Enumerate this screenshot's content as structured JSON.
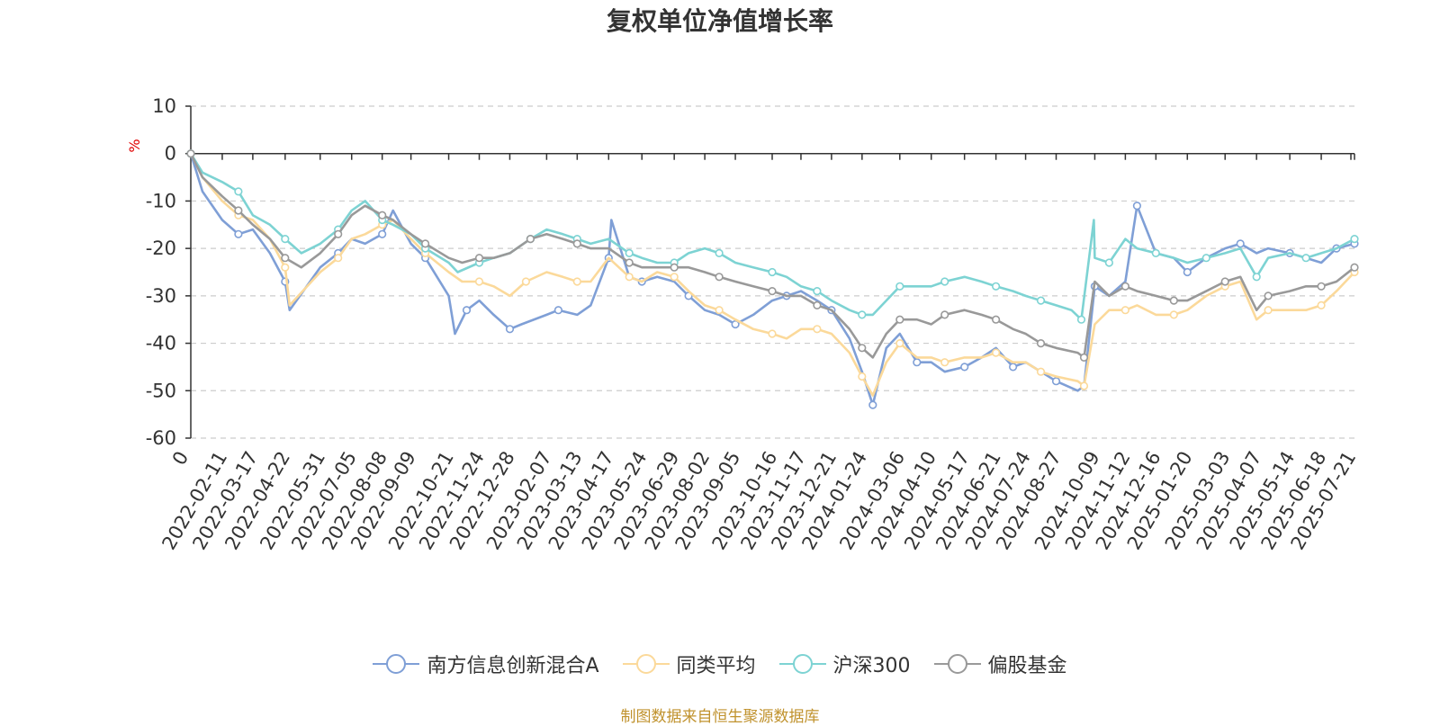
{
  "chart_data": {
    "type": "line",
    "title": "复权单位净值增长率",
    "ylabel": "%",
    "ylim": [
      -60,
      10
    ],
    "yticks": [
      10,
      0,
      -10,
      -20,
      -30,
      -40,
      -50,
      -60
    ],
    "x_start": "2022-01-07",
    "x_end": "2025-07-25",
    "origin_label": "0",
    "x_tick_labels": [
      "2022-02-11",
      "2022-03-17",
      "2022-04-22",
      "2022-05-31",
      "2022-07-05",
      "2022-08-08",
      "2022-09-09",
      "2022-10-21",
      "2022-11-24",
      "2022-12-28",
      "2023-02-07",
      "2023-03-13",
      "2023-04-17",
      "2023-05-24",
      "2023-06-29",
      "2023-08-02",
      "2023-09-05",
      "2023-10-16",
      "2023-11-17",
      "2023-12-21",
      "2024-01-24",
      "2024-03-06",
      "2024-04-10",
      "2024-05-17",
      "2024-06-21",
      "2024-07-24",
      "2024-08-27",
      "2024-10-09",
      "2024-11-12",
      "2024-12-16",
      "2025-01-20",
      "2025-03-03",
      "2025-04-07",
      "2025-05-14",
      "2025-06-18",
      "2025-07-21"
    ],
    "grid": true,
    "legend_position": "bottom",
    "series": [
      {
        "name": "南方信息创新混合A",
        "color": "#7f9fd6",
        "x": [
          "2022-01-07",
          "2022-01-20",
          "2022-02-11",
          "2022-03-01",
          "2022-03-17",
          "2022-04-05",
          "2022-04-22",
          "2022-04-27",
          "2022-05-31",
          "2022-06-20",
          "2022-07-05",
          "2022-07-20",
          "2022-08-08",
          "2022-08-20",
          "2022-09-09",
          "2022-09-25",
          "2022-10-21",
          "2022-10-28",
          "2022-11-10",
          "2022-11-24",
          "2022-12-10",
          "2022-12-28",
          "2023-01-10",
          "2023-02-07",
          "2023-02-20",
          "2023-03-13",
          "2023-03-28",
          "2023-04-17",
          "2023-04-20",
          "2023-05-10",
          "2023-05-24",
          "2023-06-10",
          "2023-06-29",
          "2023-07-15",
          "2023-08-02",
          "2023-08-18",
          "2023-09-05",
          "2023-09-25",
          "2023-10-16",
          "2023-11-01",
          "2023-11-17",
          "2023-12-05",
          "2023-12-21",
          "2024-01-10",
          "2024-01-24",
          "2024-02-05",
          "2024-02-20",
          "2024-03-06",
          "2024-03-25",
          "2024-04-10",
          "2024-04-25",
          "2024-05-17",
          "2024-06-05",
          "2024-06-21",
          "2024-07-10",
          "2024-07-24",
          "2024-08-10",
          "2024-08-27",
          "2024-09-20",
          "2024-09-27",
          "2024-10-09",
          "2024-10-25",
          "2024-11-12",
          "2024-11-25",
          "2024-12-16",
          "2025-01-05",
          "2025-01-20",
          "2025-02-10",
          "2025-03-03",
          "2025-03-20",
          "2025-04-07",
          "2025-04-20",
          "2025-05-14",
          "2025-06-01",
          "2025-06-18",
          "2025-07-05",
          "2025-07-25"
        ],
        "values": [
          0,
          -8,
          -14,
          -17,
          -16,
          -21,
          -27,
          -33,
          -24,
          -21,
          -18,
          -19,
          -17,
          -12,
          -19,
          -22,
          -30,
          -38,
          -33,
          -31,
          -34,
          -37,
          -36,
          -34,
          -33,
          -34,
          -32,
          -22,
          -14,
          -26,
          -27,
          -26,
          -27,
          -30,
          -33,
          -34,
          -36,
          -34,
          -31,
          -30,
          -29,
          -31,
          -33,
          -39,
          -46,
          -53,
          -41,
          -38,
          -44,
          -44,
          -46,
          -45,
          -43,
          -41,
          -45,
          -44,
          -46,
          -48,
          -50,
          -49,
          -28,
          -30,
          -27,
          -11,
          -21,
          -22,
          -25,
          -22,
          -20,
          -19,
          -21,
          -20,
          -21,
          -22,
          -23,
          -20,
          -19
        ]
      },
      {
        "name": "同类平均",
        "color": "#fbd99a",
        "x": [
          "2022-01-07",
          "2022-01-20",
          "2022-02-11",
          "2022-03-01",
          "2022-03-17",
          "2022-04-05",
          "2022-04-22",
          "2022-04-27",
          "2022-05-31",
          "2022-06-20",
          "2022-07-05",
          "2022-07-20",
          "2022-08-08",
          "2022-08-20",
          "2022-09-09",
          "2022-09-25",
          "2022-10-21",
          "2022-11-05",
          "2022-11-24",
          "2022-12-10",
          "2022-12-28",
          "2023-01-15",
          "2023-02-07",
          "2023-02-25",
          "2023-03-13",
          "2023-03-28",
          "2023-04-17",
          "2023-05-10",
          "2023-05-24",
          "2023-06-10",
          "2023-06-29",
          "2023-07-15",
          "2023-08-02",
          "2023-08-18",
          "2023-09-05",
          "2023-09-25",
          "2023-10-16",
          "2023-11-01",
          "2023-11-17",
          "2023-12-05",
          "2023-12-21",
          "2024-01-10",
          "2024-01-24",
          "2024-02-05",
          "2024-02-20",
          "2024-03-06",
          "2024-03-25",
          "2024-04-10",
          "2024-04-25",
          "2024-05-17",
          "2024-06-05",
          "2024-06-21",
          "2024-07-10",
          "2024-07-24",
          "2024-08-10",
          "2024-08-27",
          "2024-09-20",
          "2024-09-27",
          "2024-10-09",
          "2024-10-25",
          "2024-11-12",
          "2024-11-25",
          "2024-12-16",
          "2025-01-05",
          "2025-01-20",
          "2025-02-10",
          "2025-03-03",
          "2025-03-20",
          "2025-04-07",
          "2025-04-20",
          "2025-05-14",
          "2025-06-01",
          "2025-06-18",
          "2025-07-05",
          "2025-07-25"
        ],
        "values": [
          0,
          -5,
          -10,
          -13,
          -14,
          -18,
          -24,
          -32,
          -25,
          -22,
          -18,
          -17,
          -15,
          -14,
          -18,
          -21,
          -25,
          -27,
          -27,
          -28,
          -30,
          -27,
          -25,
          -26,
          -27,
          -27,
          -22,
          -26,
          -27,
          -25,
          -26,
          -29,
          -32,
          -33,
          -35,
          -37,
          -38,
          -39,
          -37,
          -37,
          -38,
          -42,
          -47,
          -51,
          -44,
          -40,
          -43,
          -43,
          -44,
          -43,
          -43,
          -42,
          -44,
          -44,
          -46,
          -47,
          -48,
          -49,
          -36,
          -33,
          -33,
          -32,
          -34,
          -34,
          -33,
          -30,
          -28,
          -27,
          -35,
          -33,
          -33,
          -33,
          -32,
          -29,
          -25
        ]
      },
      {
        "name": "沪深300",
        "color": "#7dd3d3",
        "x": [
          "2022-01-07",
          "2022-01-20",
          "2022-02-11",
          "2022-03-01",
          "2022-03-17",
          "2022-04-05",
          "2022-04-22",
          "2022-05-10",
          "2022-05-31",
          "2022-06-20",
          "2022-07-05",
          "2022-07-20",
          "2022-08-08",
          "2022-08-20",
          "2022-09-09",
          "2022-09-25",
          "2022-10-21",
          "2022-10-31",
          "2022-11-24",
          "2022-12-10",
          "2022-12-28",
          "2023-01-20",
          "2023-02-07",
          "2023-02-25",
          "2023-03-13",
          "2023-03-28",
          "2023-04-17",
          "2023-05-10",
          "2023-05-24",
          "2023-06-10",
          "2023-06-29",
          "2023-07-15",
          "2023-08-02",
          "2023-08-18",
          "2023-09-05",
          "2023-09-25",
          "2023-10-16",
          "2023-11-01",
          "2023-11-17",
          "2023-12-05",
          "2023-12-21",
          "2024-01-10",
          "2024-01-24",
          "2024-02-05",
          "2024-02-20",
          "2024-03-06",
          "2024-03-25",
          "2024-04-10",
          "2024-04-25",
          "2024-05-17",
          "2024-06-05",
          "2024-06-21",
          "2024-07-10",
          "2024-07-24",
          "2024-08-10",
          "2024-08-27",
          "2024-09-13",
          "2024-09-24",
          "2024-10-08",
          "2024-10-09",
          "2024-10-25",
          "2024-11-12",
          "2024-11-25",
          "2024-12-16",
          "2025-01-05",
          "2025-01-20",
          "2025-02-10",
          "2025-03-03",
          "2025-03-20",
          "2025-04-07",
          "2025-04-20",
          "2025-05-14",
          "2025-06-01",
          "2025-06-18",
          "2025-07-05",
          "2025-07-25"
        ],
        "values": [
          0,
          -4,
          -6,
          -8,
          -13,
          -15,
          -18,
          -21,
          -19,
          -16,
          -12,
          -10,
          -14,
          -15,
          -17,
          -20,
          -23,
          -25,
          -23,
          -22,
          -21,
          -18,
          -16,
          -17,
          -18,
          -19,
          -18,
          -21,
          -22,
          -23,
          -23,
          -21,
          -20,
          -21,
          -23,
          -24,
          -25,
          -26,
          -28,
          -29,
          -31,
          -33,
          -34,
          -34,
          -31,
          -28,
          -28,
          -28,
          -27,
          -26,
          -27,
          -28,
          -29,
          -30,
          -31,
          -32,
          -33,
          -35,
          -14,
          -22,
          -23,
          -18,
          -20,
          -21,
          -22,
          -23,
          -22,
          -21,
          -20,
          -26,
          -22,
          -21,
          -22,
          -21,
          -20,
          -18
        ]
      },
      {
        "name": "偏股基金",
        "color": "#999999",
        "x": [
          "2022-01-07",
          "2022-01-20",
          "2022-02-11",
          "2022-03-01",
          "2022-03-17",
          "2022-04-05",
          "2022-04-22",
          "2022-05-10",
          "2022-05-31",
          "2022-06-20",
          "2022-07-05",
          "2022-07-20",
          "2022-08-08",
          "2022-08-20",
          "2022-09-09",
          "2022-09-25",
          "2022-10-21",
          "2022-11-05",
          "2022-11-24",
          "2022-12-10",
          "2022-12-28",
          "2023-01-20",
          "2023-02-07",
          "2023-02-25",
          "2023-03-13",
          "2023-03-28",
          "2023-04-17",
          "2023-05-10",
          "2023-05-24",
          "2023-06-10",
          "2023-06-29",
          "2023-07-15",
          "2023-08-02",
          "2023-08-18",
          "2023-09-05",
          "2023-09-25",
          "2023-10-16",
          "2023-11-01",
          "2023-11-17",
          "2023-12-05",
          "2023-12-21",
          "2024-01-10",
          "2024-01-24",
          "2024-02-05",
          "2024-02-20",
          "2024-03-06",
          "2024-03-25",
          "2024-04-10",
          "2024-04-25",
          "2024-05-17",
          "2024-06-05",
          "2024-06-21",
          "2024-07-10",
          "2024-07-24",
          "2024-08-10",
          "2024-08-27",
          "2024-09-20",
          "2024-09-27",
          "2024-10-09",
          "2024-10-25",
          "2024-11-12",
          "2024-11-25",
          "2024-12-16",
          "2025-01-05",
          "2025-01-20",
          "2025-02-10",
          "2025-03-03",
          "2025-03-20",
          "2025-04-07",
          "2025-04-20",
          "2025-05-14",
          "2025-06-01",
          "2025-06-18",
          "2025-07-05",
          "2025-07-25"
        ],
        "values": [
          0,
          -5,
          -9,
          -12,
          -15,
          -18,
          -22,
          -24,
          -21,
          -17,
          -13,
          -11,
          -13,
          -14,
          -17,
          -19,
          -22,
          -23,
          -22,
          -22,
          -21,
          -18,
          -17,
          -18,
          -19,
          -20,
          -20,
          -23,
          -24,
          -24,
          -24,
          -24,
          -25,
          -26,
          -27,
          -28,
          -29,
          -30,
          -30,
          -32,
          -33,
          -37,
          -41,
          -43,
          -38,
          -35,
          -35,
          -36,
          -34,
          -33,
          -34,
          -35,
          -37,
          -38,
          -40,
          -41,
          -42,
          -43,
          -27,
          -30,
          -28,
          -29,
          -30,
          -31,
          -31,
          -29,
          -27,
          -26,
          -33,
          -30,
          -29,
          -28,
          -28,
          -27,
          -24
        ]
      }
    ]
  },
  "footer_note": "制图数据来自恒生聚源数据库"
}
